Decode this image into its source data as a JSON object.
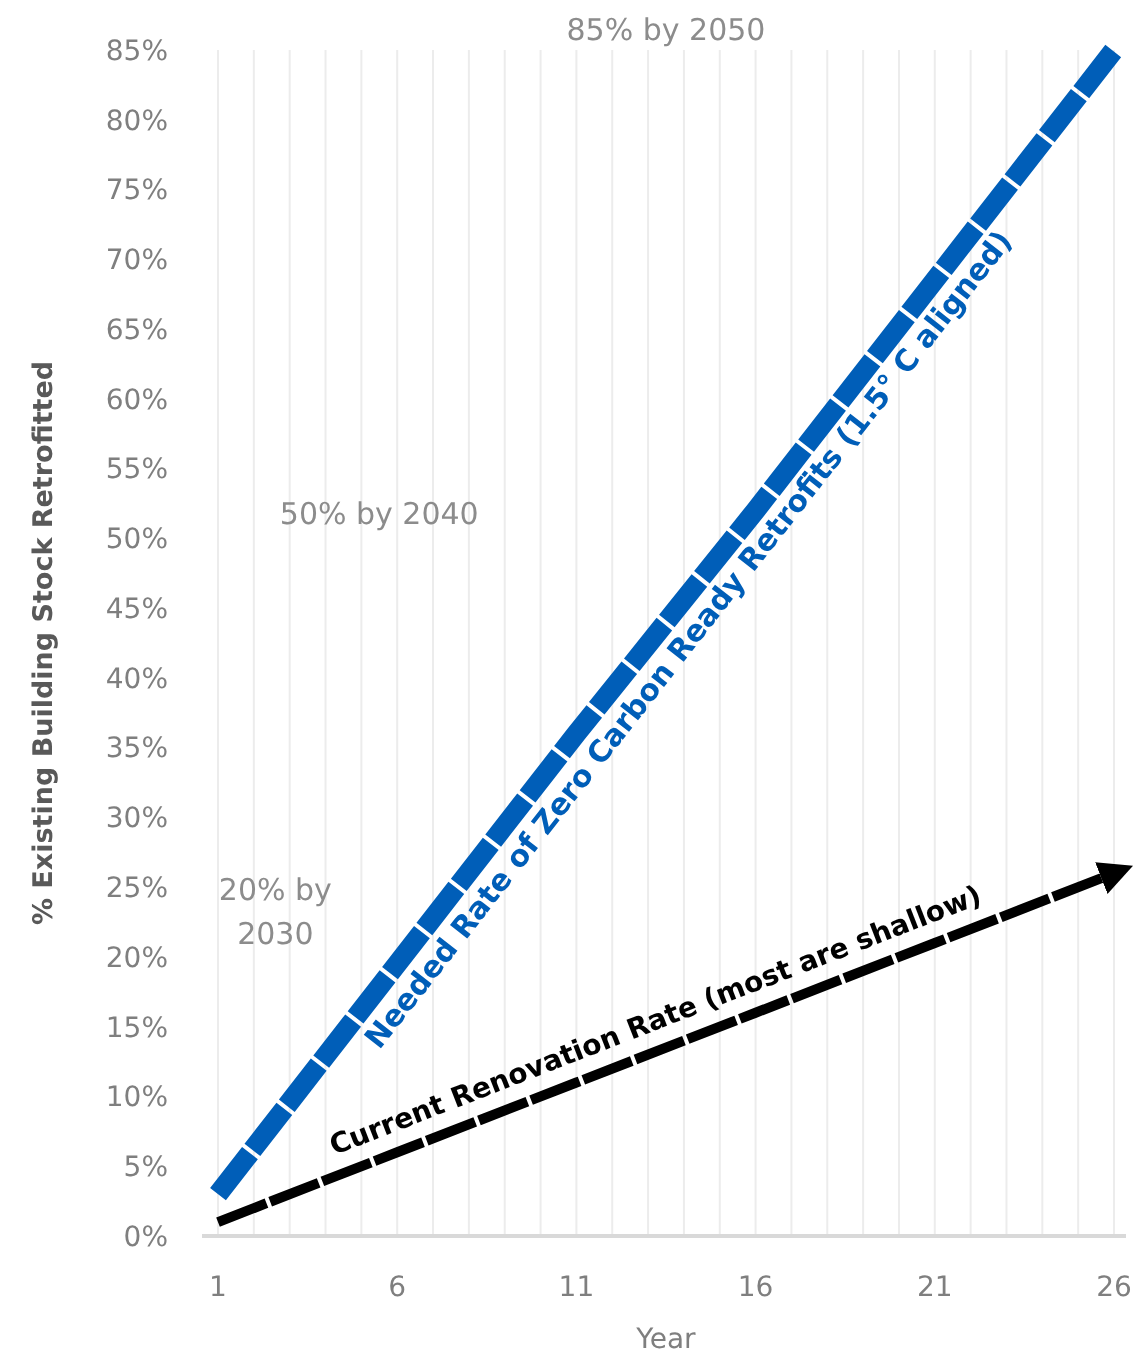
{
  "chart_data": {
    "type": "line",
    "xlabel": "Year",
    "ylabel": "% Existing Building Stock Retrofitted",
    "xlim": [
      1,
      26
    ],
    "ylim": [
      0,
      85
    ],
    "xticks": [
      1,
      {
        "value": 2,
        "label": null
      },
      {
        "value": 3,
        "label": null
      },
      {
        "value": 4,
        "label": null
      },
      {
        "value": 5,
        "label": null
      },
      6,
      {
        "value": 7,
        "label": null
      },
      {
        "value": 8,
        "label": null
      },
      {
        "value": 9,
        "label": null
      },
      {
        "value": 10,
        "label": null
      },
      11,
      {
        "value": 12,
        "label": null
      },
      {
        "value": 13,
        "label": null
      },
      {
        "value": 14,
        "label": null
      },
      {
        "value": 15,
        "label": null
      },
      16,
      {
        "value": 17,
        "label": null
      },
      {
        "value": 18,
        "label": null
      },
      {
        "value": 19,
        "label": null
      },
      {
        "value": 20,
        "label": null
      },
      21,
      {
        "value": 22,
        "label": null
      },
      {
        "value": 23,
        "label": null
      },
      {
        "value": 24,
        "label": null
      },
      {
        "value": 25,
        "label": null
      },
      26
    ],
    "yticks": [
      {
        "value": 0,
        "label": "0%"
      },
      {
        "value": 5,
        "label": "5%"
      },
      {
        "value": 10,
        "label": "10%"
      },
      {
        "value": 15,
        "label": "15%"
      },
      {
        "value": 20,
        "label": "20%"
      },
      {
        "value": 25,
        "label": "25%"
      },
      {
        "value": 30,
        "label": "30%"
      },
      {
        "value": 35,
        "label": "35%"
      },
      {
        "value": 40,
        "label": "40%"
      },
      {
        "value": 45,
        "label": "45%"
      },
      {
        "value": 50,
        "label": "50%"
      },
      {
        "value": 55,
        "label": "55%"
      },
      {
        "value": 60,
        "label": "60%"
      },
      {
        "value": 65,
        "label": "65%"
      },
      {
        "value": 70,
        "label": "70%"
      },
      {
        "value": 75,
        "label": "75%"
      },
      {
        "value": 80,
        "label": "80%"
      },
      {
        "value": 85,
        "label": "85%"
      }
    ],
    "grid": "x",
    "line_style": "dashed",
    "x": [
      1,
      6,
      11,
      16,
      21,
      26
    ],
    "series": [
      {
        "name": "Needed Rate of Zero Carbon Ready Retrofits (1.5° C aligned)",
        "color": "#005eb8",
        "values": [
          3,
          19.5,
          36,
          52,
          68.5,
          85
        ]
      },
      {
        "name": "Current Renovation Rate (most are shallow)",
        "color": "#000000",
        "values": [
          1,
          6,
          11,
          16,
          21,
          26
        ]
      }
    ],
    "annotations": [
      "85% by 2050",
      "50% by 2040",
      "20% by\n2030"
    ]
  }
}
